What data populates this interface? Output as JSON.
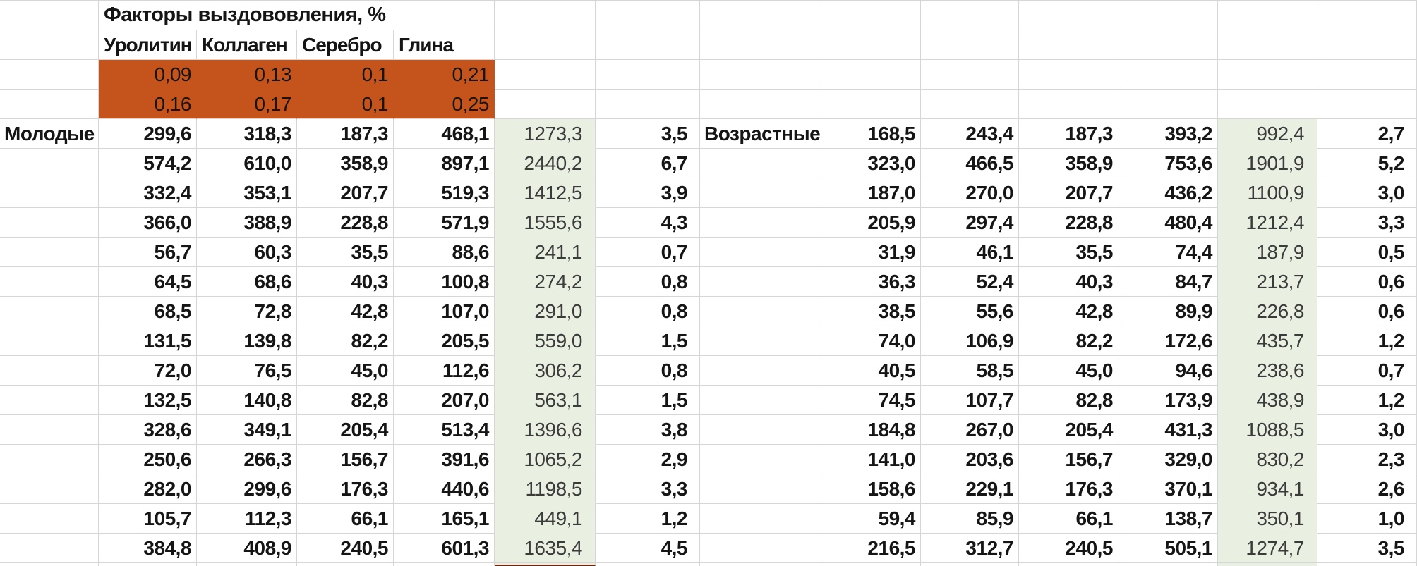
{
  "sheet": {
    "title": "Факторы выздововления, %",
    "factors": {
      "headers": [
        "Уролитин",
        "Коллаген",
        "Серебро",
        "Глина"
      ],
      "rows": [
        [
          "0,09",
          "0,13",
          "0,1",
          "0,21"
        ],
        [
          "0,16",
          "0,17",
          "0,1",
          "0,25"
        ]
      ]
    },
    "groups": [
      {
        "label": "Молодые",
        "rows": [
          {
            "values": [
              "299,6",
              "318,3",
              "187,3",
              "468,1"
            ],
            "sum": "1273,3",
            "ratio": "3,5"
          },
          {
            "values": [
              "574,2",
              "610,0",
              "358,9",
              "897,1"
            ],
            "sum": "2440,2",
            "ratio": "6,7"
          },
          {
            "values": [
              "332,4",
              "353,1",
              "207,7",
              "519,3"
            ],
            "sum": "1412,5",
            "ratio": "3,9"
          },
          {
            "values": [
              "366,0",
              "388,9",
              "228,8",
              "571,9"
            ],
            "sum": "1555,6",
            "ratio": "4,3"
          },
          {
            "values": [
              "56,7",
              "60,3",
              "35,5",
              "88,6"
            ],
            "sum": "241,1",
            "ratio": "0,7"
          },
          {
            "values": [
              "64,5",
              "68,6",
              "40,3",
              "100,8"
            ],
            "sum": "274,2",
            "ratio": "0,8"
          },
          {
            "values": [
              "68,5",
              "72,8",
              "42,8",
              "107,0"
            ],
            "sum": "291,0",
            "ratio": "0,8"
          },
          {
            "values": [
              "131,5",
              "139,8",
              "82,2",
              "205,5"
            ],
            "sum": "559,0",
            "ratio": "1,5"
          },
          {
            "values": [
              "72,0",
              "76,5",
              "45,0",
              "112,6"
            ],
            "sum": "306,2",
            "ratio": "0,8"
          },
          {
            "values": [
              "132,5",
              "140,8",
              "82,8",
              "207,0"
            ],
            "sum": "563,1",
            "ratio": "1,5"
          },
          {
            "values": [
              "328,6",
              "349,1",
              "205,4",
              "513,4"
            ],
            "sum": "1396,6",
            "ratio": "3,8"
          },
          {
            "values": [
              "250,6",
              "266,3",
              "156,7",
              "391,6"
            ],
            "sum": "1065,2",
            "ratio": "2,9"
          },
          {
            "values": [
              "282,0",
              "299,6",
              "176,3",
              "440,6"
            ],
            "sum": "1198,5",
            "ratio": "3,3"
          },
          {
            "values": [
              "105,7",
              "112,3",
              "66,1",
              "165,1"
            ],
            "sum": "449,1",
            "ratio": "1,2"
          },
          {
            "values": [
              "384,8",
              "408,9",
              "240,5",
              "601,3"
            ],
            "sum": "1635,4",
            "ratio": "4,5"
          }
        ]
      },
      {
        "label": "Возрастные",
        "rows": [
          {
            "values": [
              "168,5",
              "243,4",
              "187,3",
              "393,2"
            ],
            "sum": "992,4",
            "ratio": "2,7"
          },
          {
            "values": [
              "323,0",
              "466,5",
              "358,9",
              "753,6"
            ],
            "sum": "1901,9",
            "ratio": "5,2"
          },
          {
            "values": [
              "187,0",
              "270,0",
              "207,7",
              "436,2"
            ],
            "sum": "1100,9",
            "ratio": "3,0"
          },
          {
            "values": [
              "205,9",
              "297,4",
              "228,8",
              "480,4"
            ],
            "sum": "1212,4",
            "ratio": "3,3"
          },
          {
            "values": [
              "31,9",
              "46,1",
              "35,5",
              "74,4"
            ],
            "sum": "187,9",
            "ratio": "0,5"
          },
          {
            "values": [
              "36,3",
              "52,4",
              "40,3",
              "84,7"
            ],
            "sum": "213,7",
            "ratio": "0,6"
          },
          {
            "values": [
              "38,5",
              "55,6",
              "42,8",
              "89,9"
            ],
            "sum": "226,8",
            "ratio": "0,6"
          },
          {
            "values": [
              "74,0",
              "106,9",
              "82,2",
              "172,6"
            ],
            "sum": "435,7",
            "ratio": "1,2"
          },
          {
            "values": [
              "40,5",
              "58,5",
              "45,0",
              "94,6"
            ],
            "sum": "238,6",
            "ratio": "0,7"
          },
          {
            "values": [
              "74,5",
              "107,7",
              "82,8",
              "173,9"
            ],
            "sum": "438,9",
            "ratio": "1,2"
          },
          {
            "values": [
              "184,8",
              "267,0",
              "205,4",
              "431,3"
            ],
            "sum": "1088,5",
            "ratio": "3,0"
          },
          {
            "values": [
              "141,0",
              "203,6",
              "156,7",
              "329,0"
            ],
            "sum": "830,2",
            "ratio": "2,3"
          },
          {
            "values": [
              "158,6",
              "229,1",
              "176,3",
              "370,1"
            ],
            "sum": "934,1",
            "ratio": "2,6"
          },
          {
            "values": [
              "59,4",
              "85,9",
              "66,1",
              "138,7"
            ],
            "sum": "350,1",
            "ratio": "1,0"
          },
          {
            "values": [
              "216,5",
              "312,7",
              "240,5",
              "505,1"
            ],
            "sum": "1274,7",
            "ratio": "3,5"
          }
        ]
      }
    ],
    "colors": {
      "factor_fill": "#C4541B",
      "sum_fill": "#E9EFE1",
      "gridline": "#D6D6D6",
      "text": "#151515",
      "sum_text": "#3B3B3B",
      "bottom_marker": "#69280F"
    }
  }
}
